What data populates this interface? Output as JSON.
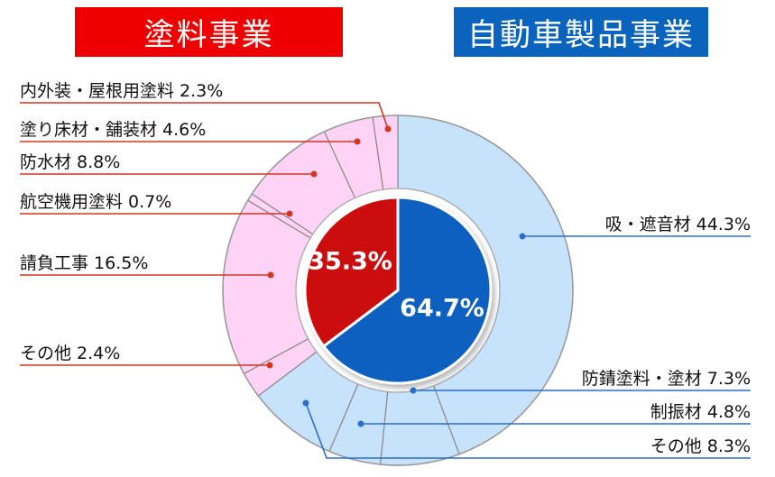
{
  "banners": {
    "left": "塗料事業",
    "right": "自動車製品事業"
  },
  "colors": {
    "paint_inner": "#cc1111",
    "auto_inner": "#0a5fc0",
    "paint_outer": "#ffd3f6",
    "auto_outer": "#c7e2fb",
    "paint_leader": "#d13820",
    "auto_leader": "#2a6ec8",
    "banner_red": "#ee0000",
    "banner_blue": "#0a63bd"
  },
  "chart_data": {
    "type": "pie",
    "inner": [
      {
        "name": "塗料事業",
        "value": 35.3,
        "label": "35.3%"
      },
      {
        "name": "自動車製品事業",
        "value": 64.7,
        "label": "64.7%"
      }
    ],
    "outer": [
      {
        "name": "吸・遮音材",
        "value": 44.3,
        "label": "吸・遮音材 44.3%",
        "group": "auto"
      },
      {
        "name": "防錆塗料・塗材",
        "value": 7.3,
        "label": "防錆塗料・塗材 7.3%",
        "group": "auto"
      },
      {
        "name": "制振材",
        "value": 4.8,
        "label": "制振材 4.8%",
        "group": "auto"
      },
      {
        "name": "その他",
        "value": 8.3,
        "label": "その他 8.3%",
        "group": "auto"
      },
      {
        "name": "その他",
        "value": 2.4,
        "label": "その他 2.4%",
        "group": "paint"
      },
      {
        "name": "請負工事",
        "value": 16.5,
        "label": "請負工事 16.5%",
        "group": "paint"
      },
      {
        "name": "航空機用塗料",
        "value": 0.7,
        "label": "航空機用塗料 0.7%",
        "group": "paint"
      },
      {
        "name": "防水材",
        "value": 8.8,
        "label": "防水材 8.8%",
        "group": "paint"
      },
      {
        "name": "塗り床材・舗装材",
        "value": 4.6,
        "label": "塗り床材・舗装材 4.6%",
        "group": "paint"
      },
      {
        "name": "内外装・屋根用塗料",
        "value": 2.3,
        "label": "内外装・屋根用塗料 2.3%",
        "group": "paint"
      }
    ]
  }
}
